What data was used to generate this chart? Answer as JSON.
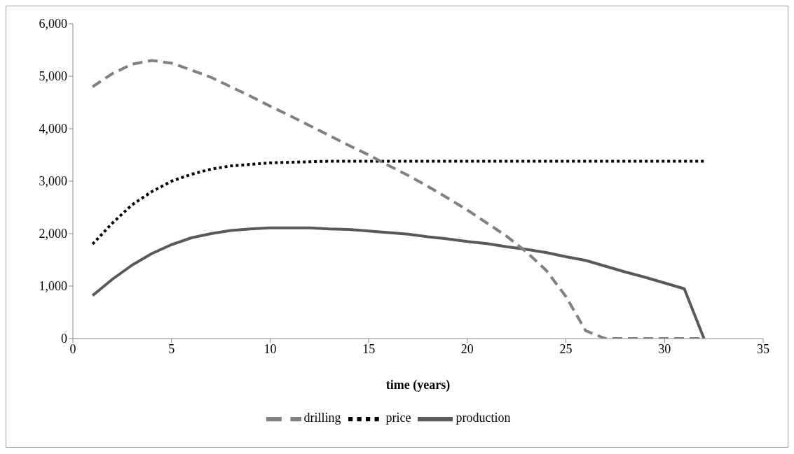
{
  "chart_data": {
    "type": "line",
    "xlabel": "time (years)",
    "x": [
      1,
      2,
      3,
      4,
      5,
      6,
      7,
      8,
      9,
      10,
      11,
      12,
      13,
      14,
      15,
      16,
      17,
      18,
      19,
      20,
      21,
      22,
      23,
      24,
      25,
      26,
      27,
      28,
      29,
      30,
      31,
      32
    ],
    "series": [
      {
        "name": "production",
        "color": "#595959",
        "line_style": "solid",
        "values": [
          820,
          1130,
          1400,
          1620,
          1790,
          1920,
          2000,
          2060,
          2090,
          2110,
          2110,
          2110,
          2090,
          2080,
          2050,
          2020,
          1990,
          1940,
          1900,
          1850,
          1810,
          1750,
          1700,
          1640,
          1560,
          1490,
          1380,
          1270,
          1170,
          1060,
          950,
          0
        ]
      },
      {
        "name": "price",
        "color": "#000000",
        "line_style": "dotted",
        "values": [
          1800,
          2200,
          2550,
          2800,
          3000,
          3130,
          3230,
          3290,
          3320,
          3350,
          3360,
          3370,
          3380,
          3380,
          3380,
          3380,
          3380,
          3380,
          3380,
          3380,
          3380,
          3380,
          3380,
          3380,
          3380,
          3380,
          3380,
          3380,
          3380,
          3380,
          3380,
          3380
        ]
      },
      {
        "name": "drilling",
        "color": "#808080",
        "line_style": "dashed",
        "values": [
          4800,
          5050,
          5230,
          5300,
          5250,
          5120,
          4980,
          4800,
          4620,
          4430,
          4250,
          4060,
          3870,
          3680,
          3500,
          3300,
          3110,
          2900,
          2680,
          2450,
          2200,
          1950,
          1650,
          1300,
          800,
          150,
          0,
          0,
          0,
          0,
          0,
          0
        ]
      }
    ],
    "xlim": [
      0,
      35
    ],
    "xticks": [
      0,
      5,
      10,
      15,
      20,
      25,
      30,
      35
    ],
    "ylim": [
      0,
      6000
    ],
    "yticks": [
      0,
      {
        "value": 1000,
        "label": "1,000"
      },
      {
        "value": 2000,
        "label": "2,000"
      },
      {
        "value": 3000,
        "label": "3,000"
      },
      {
        "value": 4000,
        "label": "4,000"
      },
      {
        "value": 5000,
        "label": "5,000"
      },
      {
        "value": 6000,
        "label": "6,000"
      }
    ],
    "grid": false,
    "legend": "bottom",
    "marker": "none"
  }
}
